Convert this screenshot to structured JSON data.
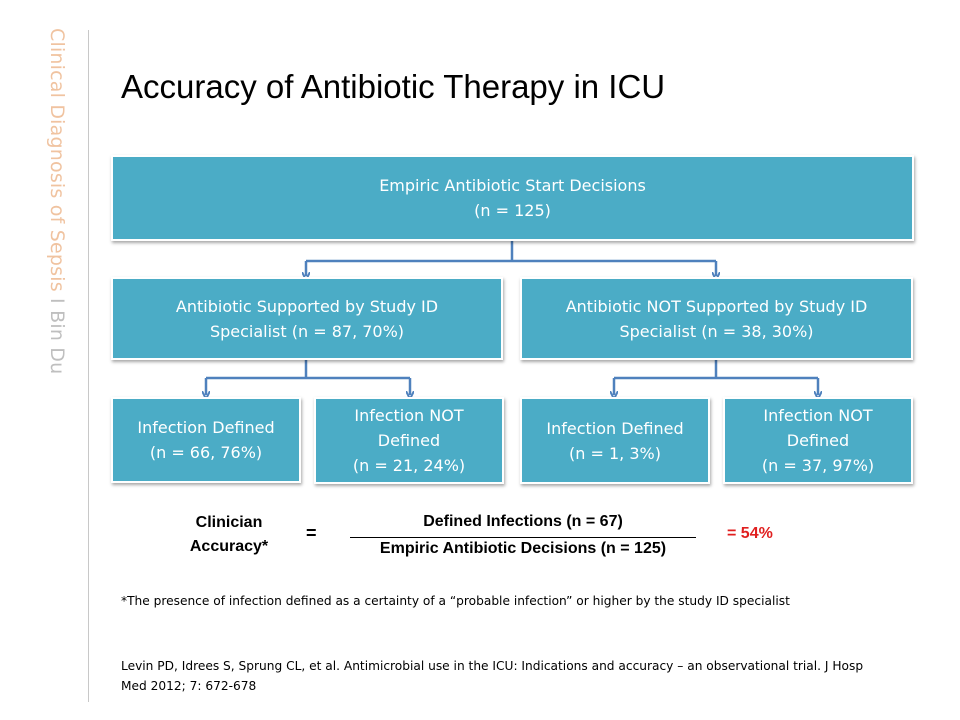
{
  "sidebar": {
    "label": "Clinical Diagnosis of Sepsis",
    "separator": "I",
    "author": "Bin Du"
  },
  "slide": {
    "title": "Accuracy of Antibiotic Therapy in ICU"
  },
  "diagram": {
    "root": {
      "line1": "Empiric Antibiotic Start Decisions",
      "line2": "(n = 125)"
    },
    "supported": {
      "line1": "Antibiotic Supported by Study ID",
      "line2": "Specialist (n = 87, 70%)"
    },
    "not_supported": {
      "line1": "Antibiotic NOT Supported by Study ID",
      "line2": "Specialist (n = 38, 30%)"
    },
    "supported_defined": {
      "line1": "Infection Defined",
      "line2": "(n = 66, 76%)"
    },
    "supported_not_defined": {
      "line1": "Infection NOT",
      "line2": "Defined",
      "line3": "(n = 21, 24%)"
    },
    "not_supported_defined": {
      "line1": "Infection Defined",
      "line2": "(n = 1, 3%)"
    },
    "not_supported_not_defined": {
      "line1": "Infection NOT",
      "line2": "Defined",
      "line3": "(n = 37, 97%)"
    },
    "box_color": "#4bacc6",
    "connector_color": "#4f81bd"
  },
  "formula": {
    "label_line1": "Clinician",
    "label_line2": "Accuracy*",
    "equals": "=",
    "numerator": "Defined Infections (n = 67)",
    "denominator": "Empiric Antibiotic Decisions (n = 125)",
    "result": "= 54%",
    "result_color": "#e01f1f"
  },
  "footnote": "*The presence of infection defined as a certainty of a “probable infection” or higher by the study ID specialist",
  "reference": "Levin PD, Idrees S, Sprung CL, et al. Antimicrobial use in the ICU: Indications and accuracy – an observational trial. J Hosp Med 2012; 7: 672-678"
}
